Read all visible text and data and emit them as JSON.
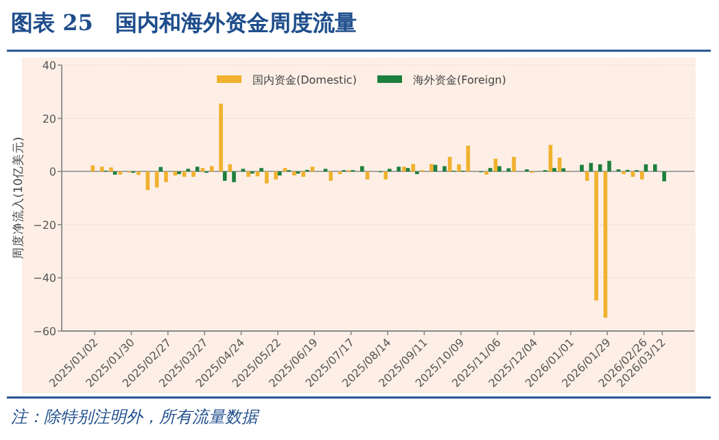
{
  "chart_data": {
    "type": "bar",
    "title": "图表 25　国内和海外资金周度流量",
    "ylabel": "周度净流入(10亿美元)",
    "annotations": [
      "注：除特别注明外，所有流量数据"
    ],
    "categories": [
      "2025/01/02",
      null,
      null,
      null,
      "2025/01/30",
      null,
      null,
      null,
      "2025/02/27",
      null,
      null,
      null,
      "2025/03/27",
      null,
      null,
      null,
      "2025/04/24",
      null,
      null,
      null,
      "2025/05/22",
      null,
      null,
      null,
      "2025/06/19",
      null,
      null,
      null,
      "2025/07/17",
      null,
      null,
      null,
      "2025/08/14",
      null,
      null,
      null,
      "2025/09/11",
      null,
      null,
      null,
      "2025/10/09",
      null,
      null,
      null,
      "2025/11/06",
      null,
      null,
      null,
      "2025/12/04",
      null,
      null,
      null,
      "2026/01/01",
      null,
      null,
      null,
      "2026/01/29",
      null,
      null,
      null,
      "2026/02/26",
      null,
      "2026/03/12"
    ],
    "series": [
      {
        "name": "国内资金(Domestic)",
        "color": "#f0b12e",
        "values": [
          2.3,
          1.8,
          1.5,
          -1.2,
          -0.4,
          -1.3,
          -7,
          -6,
          -4,
          -1.5,
          -2,
          -2,
          1.3,
          2,
          25.5,
          2.7,
          0,
          -2,
          -1.8,
          -4.5,
          -3,
          1.3,
          -1.5,
          -2,
          1.8,
          0,
          -3.5,
          -1,
          0.5,
          0,
          -3,
          0,
          -3,
          0,
          1.8,
          2.8,
          0.5,
          2.8,
          0,
          5.5,
          2.7,
          9.7,
          0,
          -1.2,
          4.8,
          0,
          5.5,
          0,
          -0.5,
          0,
          10,
          5.2,
          0.2,
          0,
          -3.5,
          -48.5,
          -55,
          0,
          -1,
          -2,
          -3,
          0,
          0
        ]
      },
      {
        "name": "海外资金(Foreign)",
        "color": "#1d7f3e",
        "values": [
          0,
          0.3,
          -1.2,
          0,
          -0.5,
          0,
          0,
          1.7,
          0,
          -1,
          1,
          1.8,
          -0.5,
          0,
          -3.5,
          -4,
          1,
          -0.8,
          1.3,
          0,
          -1.5,
          0.5,
          -0.8,
          0.6,
          0,
          1,
          0,
          0.5,
          0.5,
          2,
          0,
          -0.3,
          1,
          1.8,
          1.3,
          -1,
          0,
          2.5,
          2,
          0.3,
          0.3,
          0,
          -0.3,
          1.3,
          2,
          1.2,
          0,
          0.8,
          0,
          0.5,
          1.3,
          1.2,
          0,
          2.5,
          3.2,
          2.7,
          4,
          0.8,
          0.6,
          0.5,
          2.7,
          2.7,
          -3.7
        ]
      }
    ],
    "ylim": [
      -60,
      40
    ],
    "yticks": [
      -60,
      -40,
      -20,
      0,
      20,
      40
    ],
    "grid": "y",
    "legend": "top",
    "ref_lines": [
      {
        "axis": "y",
        "value": 0,
        "color": "#999999"
      }
    ]
  }
}
